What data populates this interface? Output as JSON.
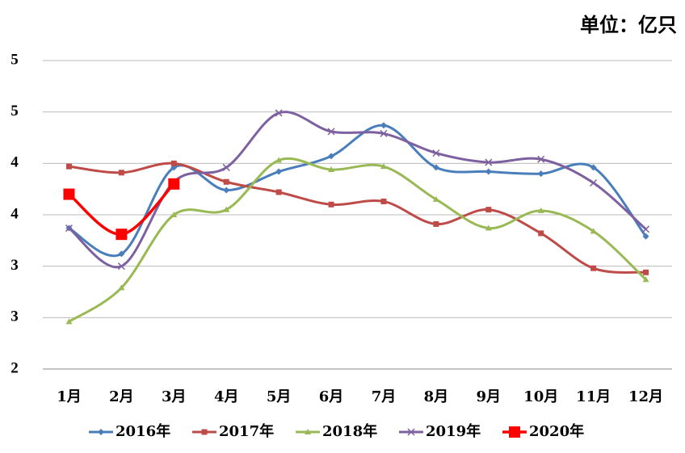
{
  "chart_data": {
    "type": "line",
    "unit_label": "单位：亿只",
    "categories": [
      "1月",
      "2月",
      "3月",
      "4月",
      "5月",
      "6月",
      "7月",
      "8月",
      "9月",
      "10月",
      "11月",
      "12月"
    ],
    "ylim": [
      2,
      5
    ],
    "yticks": [
      2,
      {
        "value": 2.5,
        "label": "3"
      },
      3,
      {
        "value": 3.5,
        "label": "4"
      },
      4,
      {
        "value": 4.5,
        "label": "5"
      },
      5
    ],
    "grid": true,
    "smooth": true,
    "legend": "bottom",
    "series": [
      {
        "name": "2016年",
        "color": "#4a7ebb",
        "marker": "diamond",
        "values": [
          3.37,
          3.12,
          3.96,
          3.74,
          3.92,
          4.07,
          4.37,
          3.96,
          3.92,
          3.9,
          3.96,
          3.29
        ]
      },
      {
        "name": "2017年",
        "color": "#be4b48",
        "marker": "square",
        "values": [
          3.97,
          3.91,
          4.0,
          3.82,
          3.72,
          3.6,
          3.63,
          3.41,
          3.55,
          3.32,
          2.98,
          2.94
        ]
      },
      {
        "name": "2018年",
        "color": "#98b954",
        "marker": "triangle",
        "values": [
          2.46,
          2.79,
          3.5,
          3.55,
          4.03,
          3.94,
          3.97,
          3.65,
          3.37,
          3.54,
          3.34,
          2.87
        ]
      },
      {
        "name": "2019年",
        "color": "#7d60a0",
        "marker": "x",
        "values": [
          3.37,
          3.0,
          3.82,
          3.96,
          4.49,
          4.31,
          4.29,
          4.1,
          4.01,
          4.04,
          3.81,
          3.36
        ]
      },
      {
        "name": "2020年",
        "color": "#ff0000",
        "marker": "bigsquare",
        "values": [
          3.7,
          3.31,
          3.8,
          null,
          null,
          null,
          null,
          null,
          null,
          null,
          null,
          null
        ]
      }
    ]
  }
}
